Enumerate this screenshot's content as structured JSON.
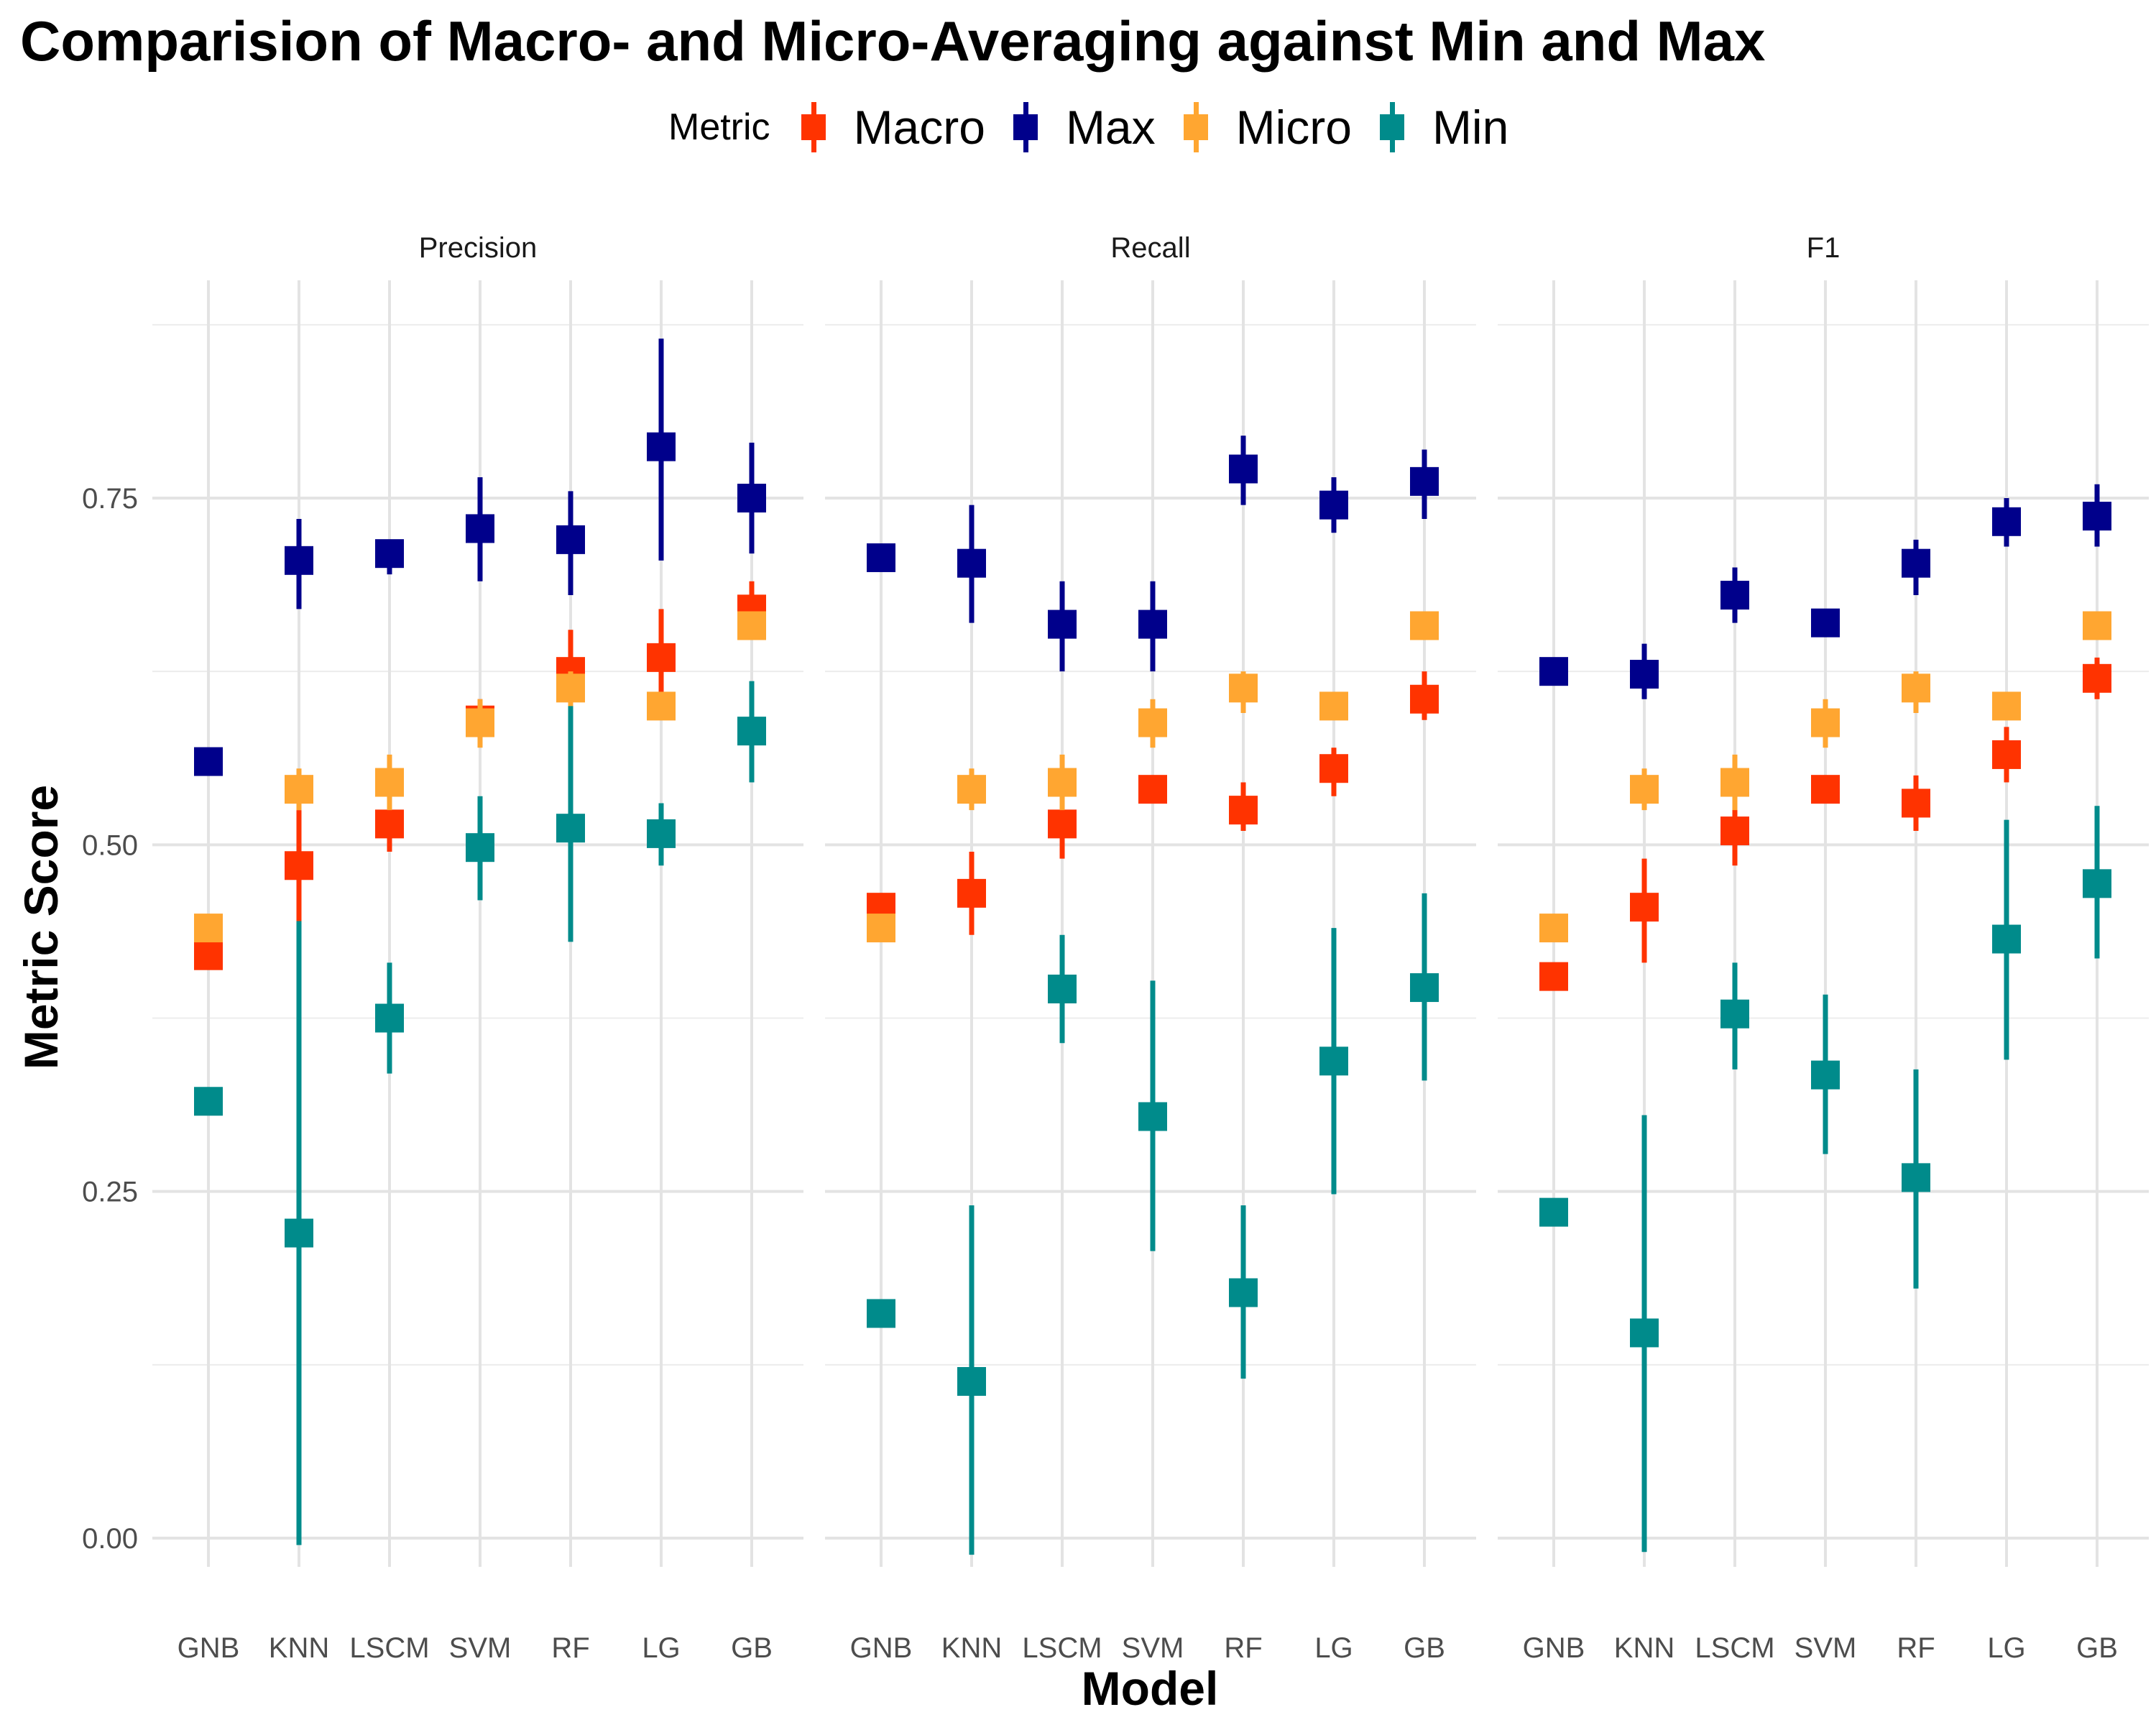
{
  "chart_data": {
    "type": "errorbar",
    "title": "Comparision of Macro- and Micro-Averaging against Min and Max",
    "xlabel": "Model",
    "ylabel": "Metric Score",
    "legend_title": "Metric",
    "legend_position": "top",
    "grid": true,
    "ylim": [
      -0.05,
      0.88
    ],
    "y_ticks": [
      "0.00",
      "0.25",
      "0.50",
      "0.75"
    ],
    "categories": [
      "GNB",
      "KNN",
      "LSCM",
      "SVM",
      "RF",
      "LG",
      "GB"
    ],
    "facets": [
      "Precision",
      "Recall",
      "F1"
    ],
    "series": [
      {
        "name": "Macro",
        "color": "#FF3300",
        "values": {
          "Precision": [
            [
              0.42,
              0.42,
              0.42
            ],
            [
              0.485,
              0.445,
              0.525
            ],
            [
              0.515,
              0.495,
              0.535
            ],
            [
              0.59,
              0.575,
              0.605
            ],
            [
              0.625,
              0.6,
              0.655
            ],
            [
              0.635,
              0.61,
              0.67
            ],
            [
              0.67,
              0.655,
              0.69
            ]
          ],
          "Recall": [
            [
              0.455,
              0.455,
              0.455
            ],
            [
              0.465,
              0.435,
              0.495
            ],
            [
              0.515,
              0.49,
              0.545
            ],
            [
              0.54,
              0.54,
              0.54
            ],
            [
              0.525,
              0.51,
              0.545
            ],
            [
              0.555,
              0.535,
              0.57
            ],
            [
              0.605,
              0.59,
              0.625
            ]
          ],
          "F1": [
            [
              0.405,
              0.405,
              0.405
            ],
            [
              0.455,
              0.415,
              0.49
            ],
            [
              0.51,
              0.485,
              0.535
            ],
            [
              0.54,
              0.54,
              0.54
            ],
            [
              0.53,
              0.51,
              0.55
            ],
            [
              0.565,
              0.545,
              0.585
            ],
            [
              0.62,
              0.605,
              0.635
            ]
          ]
        }
      },
      {
        "name": "Max",
        "color": "#00008B",
        "values": {
          "Precision": [
            [
              0.56,
              0.56,
              0.56
            ],
            [
              0.705,
              0.67,
              0.735
            ],
            [
              0.71,
              0.695,
              0.72
            ],
            [
              0.728,
              0.69,
              0.765
            ],
            [
              0.72,
              0.68,
              0.755
            ],
            [
              0.787,
              0.705,
              0.865
            ],
            [
              0.75,
              0.71,
              0.79
            ]
          ],
          "Recall": [
            [
              0.707,
              0.707,
              0.707
            ],
            [
              0.703,
              0.66,
              0.745
            ],
            [
              0.659,
              0.625,
              0.69
            ],
            [
              0.659,
              0.625,
              0.69
            ],
            [
              0.771,
              0.745,
              0.795
            ],
            [
              0.745,
              0.725,
              0.765
            ],
            [
              0.762,
              0.735,
              0.785
            ]
          ],
          "F1": [
            [
              0.625,
              0.625,
              0.625
            ],
            [
              0.623,
              0.605,
              0.645
            ],
            [
              0.68,
              0.66,
              0.7
            ],
            [
              0.66,
              0.65,
              0.67
            ],
            [
              0.703,
              0.68,
              0.72
            ],
            [
              0.733,
              0.715,
              0.75
            ],
            [
              0.737,
              0.715,
              0.76
            ]
          ]
        }
      },
      {
        "name": "Micro",
        "color": "#FFA631",
        "values": {
          "Precision": [
            [
              0.44,
              0.44,
              0.44
            ],
            [
              0.54,
              0.525,
              0.555
            ],
            [
              0.545,
              0.525,
              0.565
            ],
            [
              0.588,
              0.57,
              0.605
            ],
            [
              0.613,
              0.595,
              0.625
            ],
            [
              0.6,
              0.6,
              0.6
            ],
            [
              0.658,
              0.658,
              0.658
            ]
          ],
          "Recall": [
            [
              0.44,
              0.44,
              0.44
            ],
            [
              0.54,
              0.525,
              0.555
            ],
            [
              0.545,
              0.525,
              0.565
            ],
            [
              0.588,
              0.57,
              0.605
            ],
            [
              0.613,
              0.595,
              0.625
            ],
            [
              0.6,
              0.6,
              0.6
            ],
            [
              0.658,
              0.658,
              0.658
            ]
          ],
          "F1": [
            [
              0.44,
              0.44,
              0.44
            ],
            [
              0.54,
              0.525,
              0.555
            ],
            [
              0.545,
              0.525,
              0.565
            ],
            [
              0.588,
              0.57,
              0.605
            ],
            [
              0.613,
              0.595,
              0.625
            ],
            [
              0.6,
              0.6,
              0.6
            ],
            [
              0.658,
              0.658,
              0.658
            ]
          ]
        }
      },
      {
        "name": "Min",
        "color": "#008B8B",
        "values": {
          "Precision": [
            [
              0.315,
              0.315,
              0.315
            ],
            [
              0.22,
              -0.005,
              0.445
            ],
            [
              0.375,
              0.335,
              0.415
            ],
            [
              0.498,
              0.46,
              0.535
            ],
            [
              0.512,
              0.43,
              0.6
            ],
            [
              0.508,
              0.485,
              0.53
            ],
            [
              0.582,
              0.545,
              0.618
            ]
          ],
          "Recall": [
            [
              0.162,
              0.162,
              0.162
            ],
            [
              0.113,
              -0.012,
              0.24
            ],
            [
              0.396,
              0.357,
              0.435
            ],
            [
              0.304,
              0.207,
              0.402
            ],
            [
              0.177,
              0.115,
              0.24
            ],
            [
              0.344,
              0.248,
              0.44
            ],
            [
              0.397,
              0.33,
              0.465
            ]
          ],
          "F1": [
            [
              0.235,
              0.235,
              0.235
            ],
            [
              0.148,
              -0.01,
              0.305
            ],
            [
              0.378,
              0.338,
              0.415
            ],
            [
              0.334,
              0.277,
              0.392
            ],
            [
              0.26,
              0.18,
              0.338
            ],
            [
              0.432,
              0.345,
              0.518
            ],
            [
              0.472,
              0.418,
              0.528
            ]
          ]
        }
      }
    ]
  }
}
